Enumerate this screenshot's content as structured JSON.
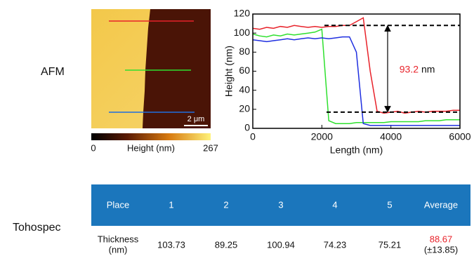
{
  "labels": {
    "afm": "AFM",
    "tohospec": "Tohospec"
  },
  "afm_image": {
    "scale_bar": "2 μm",
    "colorbar": {
      "min": 0,
      "max": 267,
      "label": "Height (nm)"
    }
  },
  "chart_data": {
    "type": "line",
    "xlabel": "Length (nm)",
    "ylabel": "Height (nm)",
    "xlim": [
      0,
      6000
    ],
    "ylim": [
      0,
      120
    ],
    "xticks": [
      0,
      2000,
      4000,
      6000
    ],
    "yticks": [
      0,
      20,
      40,
      60,
      80,
      100,
      120
    ],
    "x": [
      0,
      200,
      400,
      600,
      800,
      1000,
      1200,
      1400,
      1600,
      1800,
      2000,
      2200,
      2400,
      2600,
      2800,
      3000,
      3200,
      3400,
      3600,
      3800,
      4000,
      4200,
      4400,
      4600,
      4800,
      5000,
      5200,
      5400,
      5600,
      5800,
      6000
    ],
    "series": [
      {
        "color": "#e8222a",
        "values": [
          105,
          104,
          106,
          105,
          107,
          106,
          108,
          107,
          106,
          107,
          106,
          107,
          107,
          108,
          108,
          112,
          116,
          60,
          18,
          16,
          17,
          18,
          16,
          17,
          18,
          17,
          18,
          18,
          18,
          19,
          19
        ]
      },
      {
        "color": "#2ee02e",
        "values": [
          99,
          97,
          96,
          98,
          97,
          99,
          98,
          99,
          100,
          101,
          104,
          8,
          5,
          5,
          5,
          6,
          6,
          6,
          6,
          6,
          7,
          7,
          7,
          7,
          7,
          8,
          8,
          8,
          9,
          9,
          9
        ]
      },
      {
        "color": "#1f2fe0",
        "values": [
          93,
          92,
          91,
          92,
          93,
          94,
          93,
          94,
          95,
          94,
          95,
          94,
          95,
          96,
          96,
          80,
          5,
          3,
          3,
          3,
          3,
          3,
          3,
          3,
          3,
          3,
          3,
          3,
          3,
          3,
          3
        ]
      }
    ],
    "reference_lines": [
      108,
      17
    ],
    "annotation": {
      "value": 93.2,
      "unit": "nm",
      "color": "#e8222a"
    }
  },
  "table": {
    "header": [
      "Place",
      "1",
      "2",
      "3",
      "4",
      "5",
      "Average"
    ],
    "row_label": [
      "Thickness",
      "(nm)"
    ],
    "values": [
      103.73,
      89.25,
      100.94,
      74.23,
      75.21
    ],
    "average": 88.67,
    "average_sd": "(±13.85)",
    "header_color": "#1b76bc",
    "average_color": "#e8222a"
  }
}
